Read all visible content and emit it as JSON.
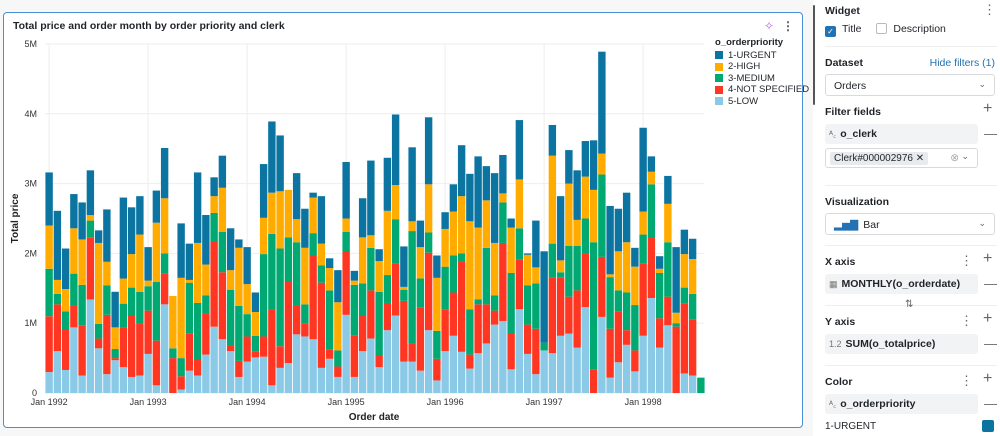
{
  "widget": {
    "title": "Total price and order month by order priority and clerk"
  },
  "colors": {
    "1-URGENT": "#0b74a0",
    "2-HIGH": "#ffab00",
    "3-MEDIUM": "#00a972",
    "4-NOT SPECIFIED": "#ff3621",
    "5-LOW": "#8bcae7",
    "card_border": "#4a8fd1",
    "link": "#2272b4"
  },
  "chart_data": {
    "type": "bar",
    "stacked": true,
    "xlabel": "Order date",
    "ylabel": "Total price",
    "ylim": [
      0,
      5
    ],
    "y_unit": "M",
    "yticks": [
      "0",
      "1M",
      "2M",
      "3M",
      "4M",
      "5M"
    ],
    "xticks": [
      "Jan 1992",
      "Jan 1993",
      "Jan 1994",
      "Jan 1995",
      "Jan 1996",
      "Jan 1997",
      "Jan 1998"
    ],
    "grid": true,
    "legend_title": "o_orderpriority",
    "legend_position": "right",
    "categories": [
      "1992-01",
      "1992-02",
      "1992-03",
      "1992-04",
      "1992-05",
      "1992-06",
      "1992-07",
      "1992-08",
      "1992-09",
      "1992-10",
      "1992-11",
      "1992-12",
      "1993-01",
      "1993-02",
      "1993-03",
      "1993-04",
      "1993-05",
      "1993-06",
      "1993-07",
      "1993-08",
      "1993-09",
      "1993-10",
      "1993-11",
      "1993-12",
      "1994-01",
      "1994-02",
      "1994-03",
      "1994-04",
      "1994-05",
      "1994-06",
      "1994-07",
      "1994-08",
      "1994-09",
      "1994-10",
      "1994-11",
      "1994-12",
      "1995-01",
      "1995-02",
      "1995-03",
      "1995-04",
      "1995-05",
      "1995-06",
      "1995-07",
      "1995-08",
      "1995-09",
      "1995-10",
      "1995-11",
      "1995-12",
      "1996-01",
      "1996-02",
      "1996-03",
      "1996-04",
      "1996-05",
      "1996-06",
      "1996-07",
      "1996-08",
      "1996-09",
      "1996-10",
      "1996-11",
      "1996-12",
      "1997-01",
      "1997-02",
      "1997-03",
      "1997-04",
      "1997-05",
      "1997-06",
      "1997-07",
      "1997-08",
      "1997-09",
      "1997-10",
      "1997-11",
      "1997-12",
      "1998-01",
      "1998-02",
      "1998-03",
      "1998-04",
      "1998-05",
      "1998-06",
      "1998-07",
      "1998-08"
    ],
    "series": [
      {
        "name": "5-LOW",
        "values": [
          0.3,
          0.6,
          0.33,
          0.94,
          0.25,
          1.34,
          0.64,
          0.27,
          0.47,
          0.37,
          0.23,
          0.25,
          0.56,
          0.11,
          1.27,
          0,
          0.05,
          0.32,
          0.25,
          0.55,
          0.95,
          0.77,
          0.6,
          0.23,
          0.45,
          0.51,
          0.52,
          0.11,
          0.36,
          0.43,
          0.84,
          0.81,
          0.77,
          0.36,
          0.49,
          0.23,
          1.12,
          0.23,
          0.6,
          0.78,
          0.37,
          0.9,
          1.11,
          0.45,
          0.45,
          0.32,
          0.9,
          0.18,
          0.6,
          0.82,
          0.59,
          0.35,
          0.57,
          0.71,
          0.98,
          1.03,
          0.34,
          1.2,
          0.56,
          0.27,
          0.61,
          0.57,
          0.82,
          0.85,
          0.65,
          1.23,
          0,
          1.09,
          0.22,
          0.44,
          0.69,
          0.31,
          0.82,
          1.36,
          0.65,
          0.97,
          0,
          0.28,
          0.25,
          0
        ]
      },
      {
        "name": "4-NOT SPECIFIED",
        "values": [
          0.8,
          0.67,
          0.58,
          0.32,
          0.72,
          0.89,
          0.14,
          0.85,
          0.03,
          0.57,
          0.88,
          0.74,
          0.62,
          0.64,
          0.44,
          0.5,
          0.19,
          0.53,
          0.23,
          0.59,
          1.22,
          0.96,
          0.08,
          0.23,
          0.36,
          0.08,
          0.29,
          1.08,
          0.31,
          1.16,
          0.42,
          0.19,
          1.2,
          1.22,
          0.13,
          0.15,
          0.9,
          0.59,
          0.51,
          0.69,
          0.16,
          0.39,
          0.74,
          0.87,
          0.26,
          0.9,
          1.11,
          0.31,
          0.6,
          0.62,
          1.3,
          0.2,
          0.7,
          0.56,
          0.2,
          1.12,
          0.52,
          0.71,
          0.42,
          0.65,
          0,
          1.09,
          0.83,
          0.53,
          0.82,
          0.77,
          0.34,
          0.86,
          0.7,
          0.73,
          0.21,
          0.3,
          1.04,
          0.86,
          0.42,
          0.41,
          0.95,
          1.0,
          0.8,
          0
        ]
      },
      {
        "name": "3-MEDIUM",
        "values": [
          0.68,
          0.15,
          0.26,
          0.45,
          0.58,
          0.24,
          0.21,
          0.42,
          0.13,
          0.34,
          0.4,
          0.46,
          0.35,
          0.84,
          0.29,
          0.14,
          0.26,
          0.73,
          0.81,
          0.26,
          0.41,
          0.58,
          0.8,
          0.79,
          0.32,
          0.23,
          1.18,
          1.09,
          1.4,
          0.64,
          0.9,
          0.27,
          0.32,
          0.25,
          0.85,
          0.23,
          0.29,
          0.73,
          0.46,
          0.61,
          0.92,
          0.4,
          0.64,
          0.16,
          1.61,
          0.42,
          0.29,
          0.4,
          0.61,
          0.53,
          0.11,
          0.65,
          0.07,
          0.81,
          0.22,
          0.58,
          0.86,
          0.45,
          0.56,
          0.65,
          0.11,
          0.48,
          0.08,
          0.73,
          0.64,
          0.5,
          1.82,
          1.18,
          0.74,
          0.3,
          0.54,
          0.65,
          0.41,
          0.77,
          0.65,
          0.78,
          0.05,
          0.23,
          0.37,
          0.22
        ]
      },
      {
        "name": "2-HIGH",
        "values": [
          0.62,
          0.2,
          0.32,
          0.65,
          0.65,
          0.08,
          1.16,
          0.34,
          0.31,
          0.36,
          0.48,
          0.82,
          0.08,
          0.85,
          0.79,
          0.75,
          1.15,
          0.04,
          0.86,
          0.44,
          0.24,
          0.63,
          0.28,
          0.83,
          0.43,
          0.34,
          0.52,
          0.59,
          0.82,
          0.68,
          0.33,
          0.81,
          0.51,
          0.31,
          0.32,
          0.69,
          0.19,
          0.06,
          0.66,
          0.18,
          0.44,
          0.92,
          0.49,
          0.04,
          0.14,
          0.45,
          0.69,
          0.76,
          0.54,
          0.63,
          0.82,
          1.26,
          1.03,
          0.68,
          0.75,
          0.13,
          0.65,
          0.7,
          0.44,
          0.23,
          0,
          1.26,
          0.17,
          0.89,
          0.37,
          0.6,
          0.75,
          0.3,
          0.04,
          0.56,
          0.72,
          0.55,
          0.33,
          0.18,
          0.06,
          0.55,
          0.15,
          0.48,
          0.5,
          0
        ]
      },
      {
        "name": "1-URGENT",
        "values": [
          0.76,
          0.99,
          0.58,
          0.49,
          0.53,
          0.64,
          0.18,
          0.75,
          0.51,
          1.16,
          0.67,
          0.55,
          0.48,
          0.46,
          0.72,
          0,
          0.78,
          0.52,
          1.01,
          0.71,
          0.27,
          0.46,
          0.6,
          0.12,
          0.53,
          0.28,
          0.77,
          1.02,
          0.8,
          0,
          0.66,
          0.56,
          0.07,
          0.68,
          0.14,
          0.46,
          0.81,
          0.14,
          0.56,
          1.07,
          0.17,
          0.76,
          1.01,
          0.58,
          1.06,
          0.38,
          0.96,
          0.32,
          0.24,
          0.39,
          0.73,
          0.68,
          1.02,
          0.49,
          1.0,
          0.55,
          0.13,
          0.85,
          0.02,
          0.67,
          1.31,
          0.44,
          0.92,
          0.48,
          0.71,
          0.51,
          0.71,
          1.46,
          0.98,
          0.61,
          0.71,
          0.27,
          1.2,
          0.22,
          0.18,
          0.4,
          0.94,
          0.35,
          0.29,
          0
        ]
      }
    ]
  },
  "panel": {
    "widget_label": "Widget",
    "title_checkbox": "Title",
    "title_checked": true,
    "description_checkbox": "Description",
    "description_checked": false,
    "dataset_label": "Dataset",
    "hide_filters": "Hide filters (1)",
    "dataset_value": "Orders",
    "filter_fields_label": "Filter fields",
    "filter_field": "o_clerk",
    "filter_field_type": "ABC",
    "filter_value": "Clerk#000002976",
    "visualization_label": "Visualization",
    "visualization_value": "Bar",
    "x_axis_label": "X axis",
    "x_axis_field": "MONTHLY(o_orderdate)",
    "y_axis_label": "Y axis",
    "y_axis_field": "SUM(o_totalprice)",
    "y_axis_type": "1.2",
    "color_label": "Color",
    "color_field": "o_orderpriority",
    "color_field_type": "ABC",
    "color_item": "1-URGENT"
  }
}
